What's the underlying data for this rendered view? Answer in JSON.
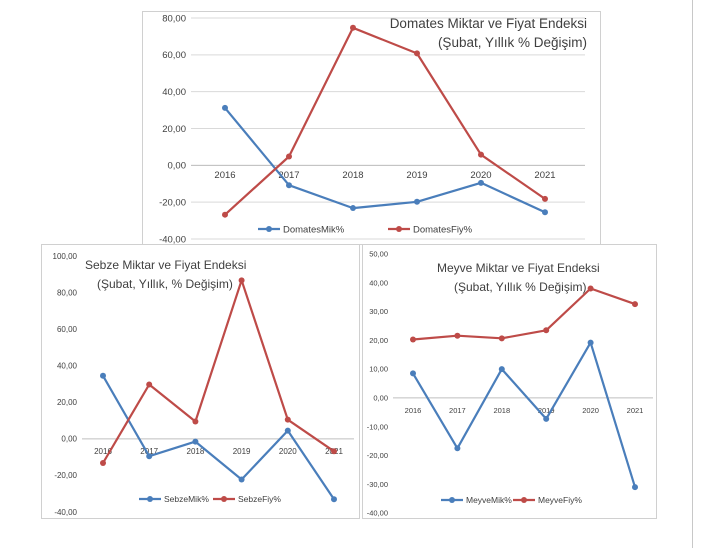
{
  "colors": {
    "quantity": "#4a7ebb",
    "price": "#be4b48",
    "grid": "#d9d9d9",
    "axis_text": "#404040",
    "title_text": "#404040"
  },
  "chart_data": [
    {
      "id": "tomato",
      "type": "line",
      "title_line1": "Domates Miktar ve Fiyat Endeksi",
      "title_line2": "(Şubat, Yıllık % Değişim)",
      "categories": [
        "2016",
        "2017",
        "2018",
        "2019",
        "2020",
        "2021"
      ],
      "ylim": [
        -40,
        80
      ],
      "ytick_labels": [
        "80,00",
        "60,00",
        "40,00",
        "20,00",
        "0,00",
        "-20,00",
        "-40,00"
      ],
      "grid": true,
      "legend_position": "bottom",
      "series": [
        {
          "name": "DomatesMik%",
          "color": "#4a7ebb",
          "values": [
            31.2,
            -10.8,
            -23.2,
            -19.8,
            -9.5,
            -25.5
          ]
        },
        {
          "name": "DomatesFiy%",
          "color": "#be4b48",
          "values": [
            -26.8,
            4.8,
            74.7,
            60.8,
            5.8,
            -18.2
          ]
        }
      ]
    },
    {
      "id": "vegetable",
      "type": "line",
      "title_line1": "Sebze Miktar ve Fiyat Endeksi",
      "title_line2": "(Şubat, Yıllık, % Değişim)",
      "categories": [
        "2016",
        "2017",
        "2018",
        "2019",
        "2020",
        "2021"
      ],
      "ylim": [
        -40,
        100
      ],
      "ytick_labels": [
        "100,00",
        "80,00",
        "60,00",
        "40,00",
        "20,00",
        "0,00",
        "-20,00",
        "-40,00"
      ],
      "grid": false,
      "legend_position": "bottom",
      "series": [
        {
          "name": "SebzeMik%",
          "color": "#4a7ebb",
          "values": [
            34.5,
            -9.5,
            -1.5,
            -22.2,
            4.5,
            -33.0
          ]
        },
        {
          "name": "SebzeFiy%",
          "color": "#be4b48",
          "values": [
            -13.2,
            29.7,
            9.5,
            86.7,
            10.5,
            -6.8
          ]
        }
      ]
    },
    {
      "id": "fruit",
      "type": "line",
      "title_line1": "Meyve Miktar ve Fiyat Endeksi",
      "title_line2": "(Şubat, Yıllık % Değişim)",
      "categories": [
        "2016",
        "2017",
        "2018",
        "2019",
        "2020",
        "2021"
      ],
      "ylim": [
        -40,
        50
      ],
      "ytick_labels": [
        "50,00",
        "40,00",
        "30,00",
        "20,00",
        "10,00",
        "0,00",
        "-10,00",
        "-20,00",
        "-30,00",
        "-40,00"
      ],
      "grid": false,
      "legend_position": "bottom",
      "series": [
        {
          "name": "MeyveMik%",
          "color": "#4a7ebb",
          "values": [
            8.5,
            -17.5,
            10.0,
            -7.3,
            19.2,
            -31.0
          ]
        },
        {
          "name": "MeyveFiy%",
          "color": "#be4b48",
          "values": [
            20.3,
            21.6,
            20.7,
            23.5,
            38.0,
            32.6
          ]
        }
      ]
    }
  ]
}
